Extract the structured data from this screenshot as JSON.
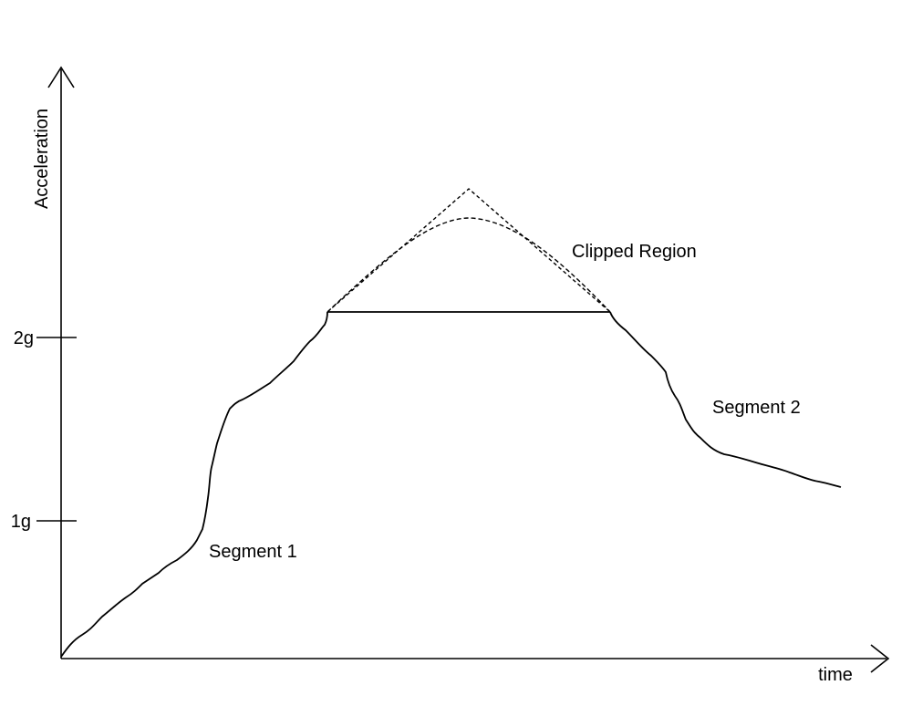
{
  "axes": {
    "y_label": "Acceleration",
    "x_label": "time",
    "ticks": [
      {
        "label": "2g",
        "value": 2
      },
      {
        "label": "1g",
        "value": 1
      }
    ]
  },
  "annotations": {
    "clipped_region": "Clipped Region",
    "segment_1": "Segment 1",
    "segment_2": "Segment 2"
  },
  "colors": {
    "line": "#000000",
    "background": "#ffffff"
  }
}
